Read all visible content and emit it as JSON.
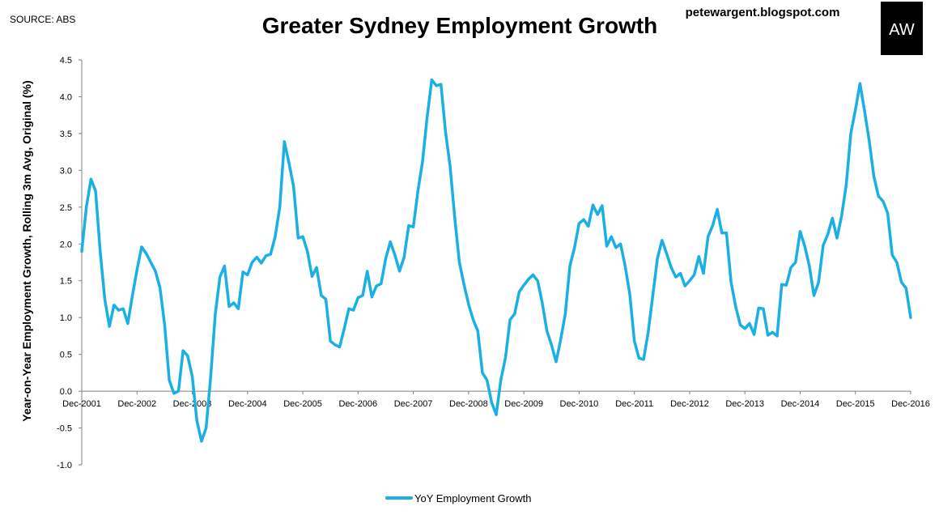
{
  "header": {
    "source": "SOURCE: ABS",
    "site": "petewargent.blogspot.com",
    "logo_text": "AW"
  },
  "colors": {
    "line": "#1BB0E3",
    "logo_bg": "#000000",
    "axis": "#808080"
  },
  "chart_data": {
    "type": "line",
    "title": "Greater Sydney Employment Growth",
    "ylabel": "Year-on-Year Employment Growth, Rolling 3m Avg, Original (%)",
    "xlabel": "",
    "ylim": [
      -1.0,
      4.5
    ],
    "yticks": [
      "-1.0",
      "-0.5",
      "0.0",
      "0.5",
      "1.0",
      "1.5",
      "2.0",
      "2.5",
      "3.0",
      "3.5",
      "4.0",
      "4.5"
    ],
    "x_range": [
      "Dec-2001",
      "Dec-2016"
    ],
    "xticks": [
      "Dec-2001",
      "Dec-2002",
      "Dec-2003",
      "Dec-2004",
      "Dec-2005",
      "Dec-2006",
      "Dec-2007",
      "Dec-2008",
      "Dec-2009",
      "Dec-2010",
      "Dec-2011",
      "Dec-2012",
      "Dec-2013",
      "Dec-2014",
      "Dec-2015",
      "Dec-2016"
    ],
    "grid": false,
    "legend": "bottom",
    "series": [
      {
        "name": "YoY Employment Growth",
        "values": [
          1.9,
          2.5,
          2.88,
          2.72,
          1.9,
          1.25,
          0.88,
          1.17,
          1.1,
          1.12,
          0.92,
          1.3,
          1.65,
          1.96,
          1.87,
          1.75,
          1.63,
          1.4,
          0.9,
          0.15,
          -0.03,
          0.0,
          0.55,
          0.48,
          0.2,
          -0.4,
          -0.68,
          -0.5,
          0.2,
          1.05,
          1.55,
          1.7,
          1.15,
          1.2,
          1.12,
          1.62,
          1.58,
          1.75,
          1.82,
          1.74,
          1.84,
          1.86,
          2.1,
          2.5,
          3.39,
          3.1,
          2.78,
          2.08,
          2.1,
          1.9,
          1.56,
          1.68,
          1.3,
          1.25,
          0.68,
          0.63,
          0.6,
          0.85,
          1.12,
          1.1,
          1.27,
          1.3,
          1.63,
          1.28,
          1.43,
          1.46,
          1.8,
          2.03,
          1.85,
          1.63,
          1.82,
          2.25,
          2.23,
          2.72,
          3.12,
          3.72,
          4.23,
          4.15,
          4.17,
          3.52,
          3.05,
          2.35,
          1.75,
          1.45,
          1.18,
          0.97,
          0.82,
          0.25,
          0.15,
          -0.15,
          -0.32,
          0.15,
          0.45,
          0.97,
          1.05,
          1.35,
          1.44,
          1.52,
          1.58,
          1.5,
          1.2,
          0.82,
          0.63,
          0.4,
          0.7,
          1.05,
          1.7,
          1.95,
          2.28,
          2.33,
          2.24,
          2.53,
          2.4,
          2.52,
          1.97,
          2.1,
          1.95,
          2.0,
          1.7,
          1.32,
          0.68,
          0.45,
          0.43,
          0.8,
          1.3,
          1.8,
          2.05,
          1.87,
          1.68,
          1.55,
          1.6,
          1.43,
          1.5,
          1.58,
          1.83,
          1.6,
          2.1,
          2.25,
          2.47,
          2.15,
          2.15,
          1.48,
          1.15,
          0.9,
          0.85,
          0.92,
          0.77,
          1.13,
          1.12,
          0.76,
          0.8,
          0.75,
          1.45,
          1.44,
          1.68,
          1.75,
          2.17,
          1.97,
          1.7,
          1.3,
          1.48,
          1.98,
          2.13,
          2.35,
          2.08,
          2.38,
          2.8,
          3.5,
          3.82,
          4.18,
          3.8,
          3.4,
          2.92,
          2.65,
          2.58,
          2.42,
          1.85,
          1.75,
          1.48,
          1.4,
          1.0
        ]
      }
    ]
  }
}
